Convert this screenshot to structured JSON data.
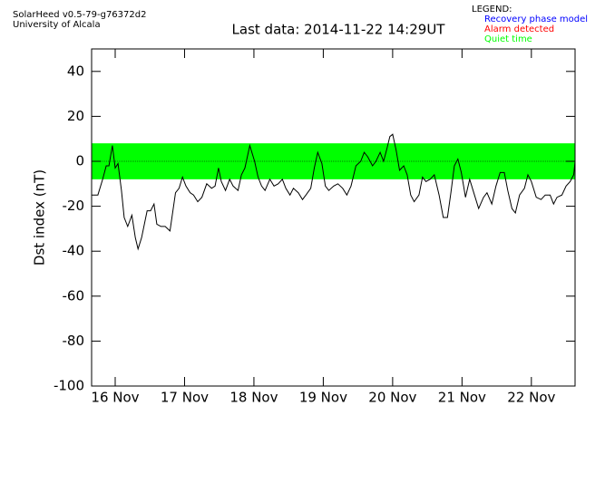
{
  "chart_data": {
    "type": "line",
    "header": [
      "SolarHeed v0.5-79-g76372d2",
      "University of Alcala"
    ],
    "title": "Last data: 2014-11-22 14:29UT",
    "ylabel": "Dst index (nT)",
    "legend": {
      "title": "LEGEND:",
      "items": [
        {
          "name": "Recovery phase model",
          "color": "#0000ff"
        },
        {
          "name": "Alarm detected",
          "color": "#ff0000"
        },
        {
          "name": "Quiet time",
          "color": "#00ff00"
        }
      ]
    },
    "quiet_band": [
      -8,
      8
    ],
    "color": "#000000",
    "x": [
      15.66,
      15.75,
      15.82,
      15.87,
      15.91,
      15.96,
      16.0,
      16.04,
      16.09,
      16.13,
      16.18,
      16.24,
      16.29,
      16.33,
      16.38,
      16.46,
      16.51,
      16.56,
      16.6,
      16.66,
      16.72,
      16.79,
      16.87,
      16.92,
      16.97,
      17.02,
      17.08,
      17.13,
      17.19,
      17.25,
      17.32,
      17.39,
      17.44,
      17.49,
      17.53,
      17.59,
      17.65,
      17.7,
      17.77,
      17.82,
      17.87,
      17.94,
      18.01,
      18.06,
      18.11,
      18.16,
      18.23,
      18.29,
      18.35,
      18.41,
      18.46,
      18.52,
      18.57,
      18.64,
      18.7,
      18.75,
      18.82,
      18.87,
      18.92,
      18.98,
      19.03,
      19.08,
      19.15,
      19.21,
      19.28,
      19.34,
      19.4,
      19.47,
      19.54,
      19.59,
      19.64,
      19.71,
      19.76,
      19.82,
      19.87,
      19.92,
      19.96,
      20.0,
      20.05,
      20.1,
      20.16,
      20.21,
      20.26,
      20.31,
      20.38,
      20.43,
      20.48,
      20.54,
      20.6,
      20.67,
      20.73,
      20.79,
      20.84,
      20.89,
      20.94,
      20.99,
      21.05,
      21.11,
      21.18,
      21.24,
      21.31,
      21.36,
      21.43,
      21.49,
      21.55,
      21.61,
      21.66,
      21.72,
      21.77,
      21.83,
      21.9,
      21.95,
      22.0,
      22.07,
      22.14,
      22.2,
      22.27,
      22.32,
      22.37,
      22.44,
      22.5,
      22.56,
      22.61,
      22.63
    ],
    "values": [
      -15,
      -15,
      -8,
      -2,
      -2,
      7,
      -3,
      -1,
      -13,
      -25,
      -29,
      -24,
      -34,
      -39,
      -34,
      -22,
      -22,
      -19,
      -28,
      -29,
      -29,
      -31,
      -14,
      -12,
      -7,
      -11,
      -14,
      -15,
      -18,
      -16,
      -10,
      -12,
      -11,
      -3,
      -9,
      -13,
      -8,
      -11,
      -13,
      -6,
      -3,
      7,
      0,
      -7,
      -11,
      -13,
      -8,
      -11,
      -10,
      -8,
      -12,
      -15,
      -12,
      -14,
      -17,
      -15,
      -12,
      -3,
      4,
      -1,
      -11,
      -13,
      -11,
      -10,
      -12,
      -15,
      -11,
      -2,
      0,
      4,
      2,
      -2,
      0,
      4,
      0,
      6,
      11,
      12,
      5,
      -4,
      -2,
      -6,
      -15,
      -18,
      -15,
      -7,
      -9,
      -8,
      -6,
      -15,
      -25,
      -25,
      -14,
      -2,
      1,
      -5,
      -16,
      -8,
      -15,
      -21,
      -16,
      -14,
      -19,
      -11,
      -5,
      -5,
      -13,
      -21,
      -23,
      -15,
      -12,
      -6,
      -9,
      -16,
      -17,
      -15,
      -15,
      -19,
      -16,
      -15,
      -11,
      -9,
      -6,
      0
    ],
    "xlim": [
      15.66,
      22.63
    ],
    "xticks": [
      {
        "value": 16,
        "label": "16 Nov"
      },
      {
        "value": 17,
        "label": "17 Nov"
      },
      {
        "value": 18,
        "label": "18 Nov"
      },
      {
        "value": 19,
        "label": "19 Nov"
      },
      {
        "value": 20,
        "label": "20 Nov"
      },
      {
        "value": 21,
        "label": "21 Nov"
      },
      {
        "value": 22,
        "label": "22 Nov"
      }
    ],
    "ylim": [
      -100,
      50
    ],
    "yticks": [
      -100,
      -80,
      -60,
      -40,
      -20,
      0,
      20,
      40
    ]
  }
}
